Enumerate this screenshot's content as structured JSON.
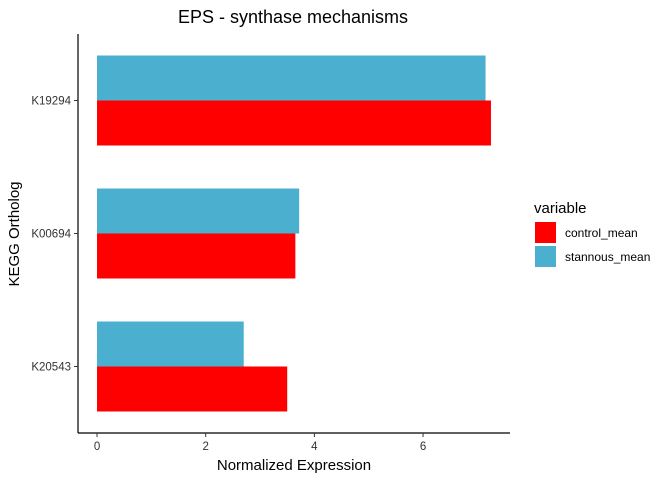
{
  "chart_data": {
    "type": "bar",
    "orientation": "horizontal",
    "title": "EPS - synthase mechanisms",
    "xlabel": "Normalized Expression",
    "ylabel": "KEGG Ortholog",
    "categories": [
      "K19294",
      "K00694",
      "K20543"
    ],
    "series": [
      {
        "name": "control_mean",
        "color": "#FF0000",
        "values": [
          7.25,
          3.65,
          3.5
        ]
      },
      {
        "name": "stannous_mean",
        "color": "#4BAFD0",
        "values": [
          7.15,
          3.72,
          2.7
        ]
      }
    ],
    "xlim": [
      -0.35,
      7.6
    ],
    "xticks": [
      0,
      2,
      4,
      6
    ],
    "grid": false,
    "legend": {
      "title": "variable",
      "placement": "right"
    }
  }
}
